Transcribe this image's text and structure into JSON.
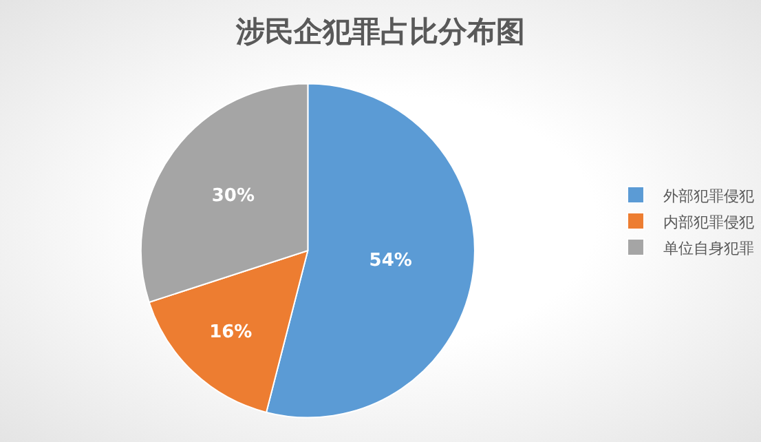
{
  "chart_data": {
    "type": "pie",
    "title": "涉民企犯罪占比分布图",
    "categories": [
      "外部犯罪侵犯",
      "内部犯罪侵犯",
      "单位自身犯罪"
    ],
    "values": [
      54,
      16,
      30
    ],
    "value_labels": [
      "54%",
      "16%",
      "30%"
    ],
    "colors": [
      "#5b9bd5",
      "#ed7d31",
      "#a5a5a5"
    ],
    "legend": "right"
  }
}
